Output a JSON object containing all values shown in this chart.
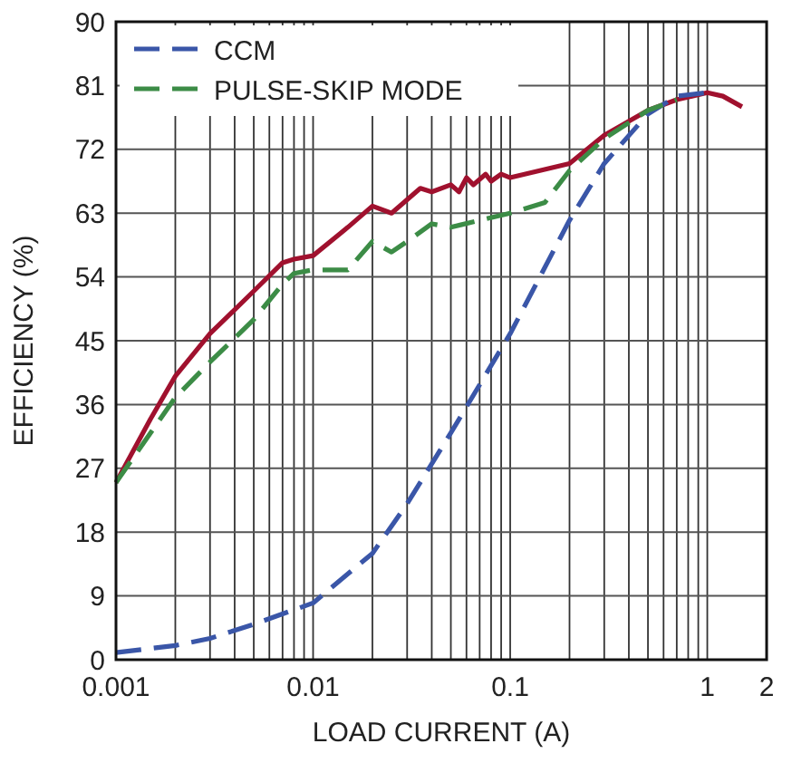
{
  "chart_data": {
    "type": "line",
    "xlabel": "LOAD CURRENT (A)",
    "ylabel": "EFFICIENCY (%)",
    "log": "x",
    "grid": true,
    "legend": "top left",
    "line_style": "solid",
    "xlim": [
      0.001,
      2
    ],
    "xticks": [
      0.001,
      0.01,
      0.1,
      1,
      2
    ],
    "ylim": [
      0,
      90
    ],
    "yticks": [
      0,
      9,
      18,
      27,
      36,
      45,
      54,
      63,
      72,
      81,
      90
    ],
    "series": [
      {
        "color": "#a0112e",
        "x": [
          0.001,
          0.0015,
          0.002,
          0.003,
          0.005,
          0.007,
          0.008,
          0.01,
          0.015,
          0.02,
          0.025,
          0.035,
          0.04,
          0.05,
          0.055,
          0.06,
          0.065,
          0.075,
          0.08,
          0.09,
          0.1,
          0.2,
          0.3,
          0.5,
          0.7,
          1,
          1.2,
          1.5
        ],
        "values": [
          25,
          34,
          40,
          46,
          52,
          56,
          56.5,
          57,
          61,
          64,
          63,
          66.5,
          66,
          67,
          66,
          68,
          67,
          68.5,
          67.5,
          68.5,
          68,
          70,
          74,
          77.5,
          79,
          80,
          79.5,
          78
        ]
      },
      {
        "name": "CCM",
        "color": "#3a56a8",
        "line_style": "dashed",
        "x": [
          0.001,
          0.002,
          0.003,
          0.005,
          0.01,
          0.02,
          0.03,
          0.05,
          0.1,
          0.2,
          0.3,
          0.5,
          0.7,
          1
        ],
        "values": [
          1,
          2,
          3,
          5,
          8,
          15,
          22,
          32,
          46,
          62,
          70,
          77,
          79.5,
          80
        ]
      },
      {
        "name": "PULSE-SKIP MODE",
        "color": "#3c8c46",
        "line_style": "dashed",
        "x": [
          0.001,
          0.002,
          0.003,
          0.005,
          0.007,
          0.008,
          0.01,
          0.015,
          0.02,
          0.025,
          0.03,
          0.04,
          0.05,
          0.07,
          0.1,
          0.15,
          0.2,
          0.3,
          0.5,
          0.7
        ],
        "values": [
          25,
          37,
          42,
          48,
          53,
          54.5,
          55,
          55,
          59,
          57.5,
          59,
          61.5,
          61,
          62,
          63,
          64.5,
          69,
          73.5,
          77.5,
          79
        ]
      }
    ]
  }
}
